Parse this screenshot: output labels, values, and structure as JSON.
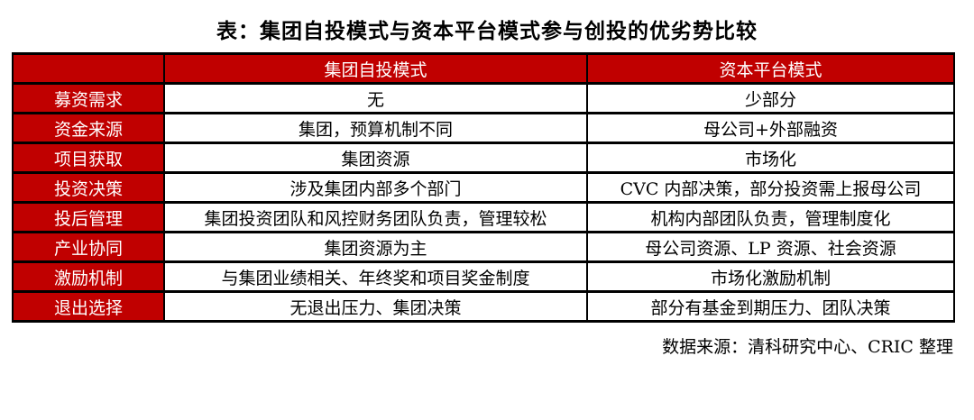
{
  "title": "表：集团自投模式与资本平台模式参与创投的优劣势比较",
  "table": {
    "columns": [
      "",
      "集团自投模式",
      "资本平台模式"
    ],
    "rows": [
      {
        "label": "募资需求",
        "self": "无",
        "platform": "少部分"
      },
      {
        "label": "资金来源",
        "self": "集团，预算机制不同",
        "platform": "母公司+外部融资"
      },
      {
        "label": "项目获取",
        "self": "集团资源",
        "platform": "市场化"
      },
      {
        "label": "投资决策",
        "self": "涉及集团内部多个部门",
        "platform": "CVC 内部决策，部分投资需上报母公司"
      },
      {
        "label": "投后管理",
        "self": "集团投资团队和风控财务团队负责，管理较松",
        "platform": "机构内部团队负责，管理制度化"
      },
      {
        "label": "产业协同",
        "self": "集团资源为主",
        "platform": "母公司资源、LP 资源、社会资源"
      },
      {
        "label": "激励机制",
        "self": "与集团业绩相关、年终奖和项目奖金制度",
        "platform": "市场化激励机制"
      },
      {
        "label": "退出选择",
        "self": "无退出压力、集团决策",
        "platform": "部分有基金到期压力、团队决策"
      }
    ]
  },
  "footer": "数据来源：清科研究中心、CRIC 整理",
  "colors": {
    "header_red": "#C00000",
    "border": "#000000",
    "text_on_red": "#FFFFFF",
    "body_text": "#000000"
  }
}
